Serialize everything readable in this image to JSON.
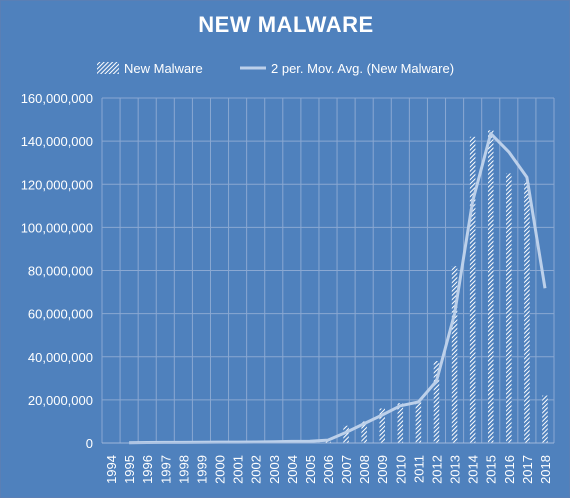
{
  "chart_data": {
    "type": "bar",
    "title": "NEW MALWARE",
    "xlabel": "",
    "ylabel": "",
    "ylim": [
      0,
      160000000
    ],
    "yticks": [
      "0",
      "20,000,000",
      "40,000,000",
      "60,000,000",
      "80,000,000",
      "100,000,000",
      "120,000,000",
      "140,000,000",
      "160,000,000"
    ],
    "grid": true,
    "legend_position": "top",
    "categories": [
      "1994",
      "1995",
      "1996",
      "1997",
      "1998",
      "1999",
      "2000",
      "2001",
      "2002",
      "2003",
      "2004",
      "2005",
      "2006",
      "2007",
      "2008",
      "2009",
      "2010",
      "2011",
      "2012",
      "2013",
      "2014",
      "2015",
      "2016",
      "2017",
      "2018"
    ],
    "series": [
      {
        "name": "New Malware",
        "type": "bar",
        "values": [
          0,
          200000,
          300000,
          300000,
          300000,
          400000,
          400000,
          400000,
          500000,
          700000,
          800000,
          900000,
          1800000,
          8000000,
          10000000,
          16000000,
          18500000,
          19500000,
          38000000,
          82000000,
          142000000,
          145000000,
          125000000,
          121500000,
          22000000
        ]
      },
      {
        "name": "2 per. Mov. Avg. (New Malware)",
        "type": "line",
        "values": [
          null,
          100000,
          250000,
          300000,
          300000,
          350000,
          400000,
          400000,
          450000,
          600000,
          750000,
          850000,
          1350000,
          4900000,
          9000000,
          13000000,
          17250000,
          19000000,
          28750000,
          60000000,
          112000000,
          143500000,
          135000000,
          123250000,
          71750000
        ]
      }
    ],
    "colors": {
      "background": "#4f81bd",
      "grid": "#8aa8d2",
      "line": "#bcd0ea",
      "bar": "#ffffff"
    }
  }
}
